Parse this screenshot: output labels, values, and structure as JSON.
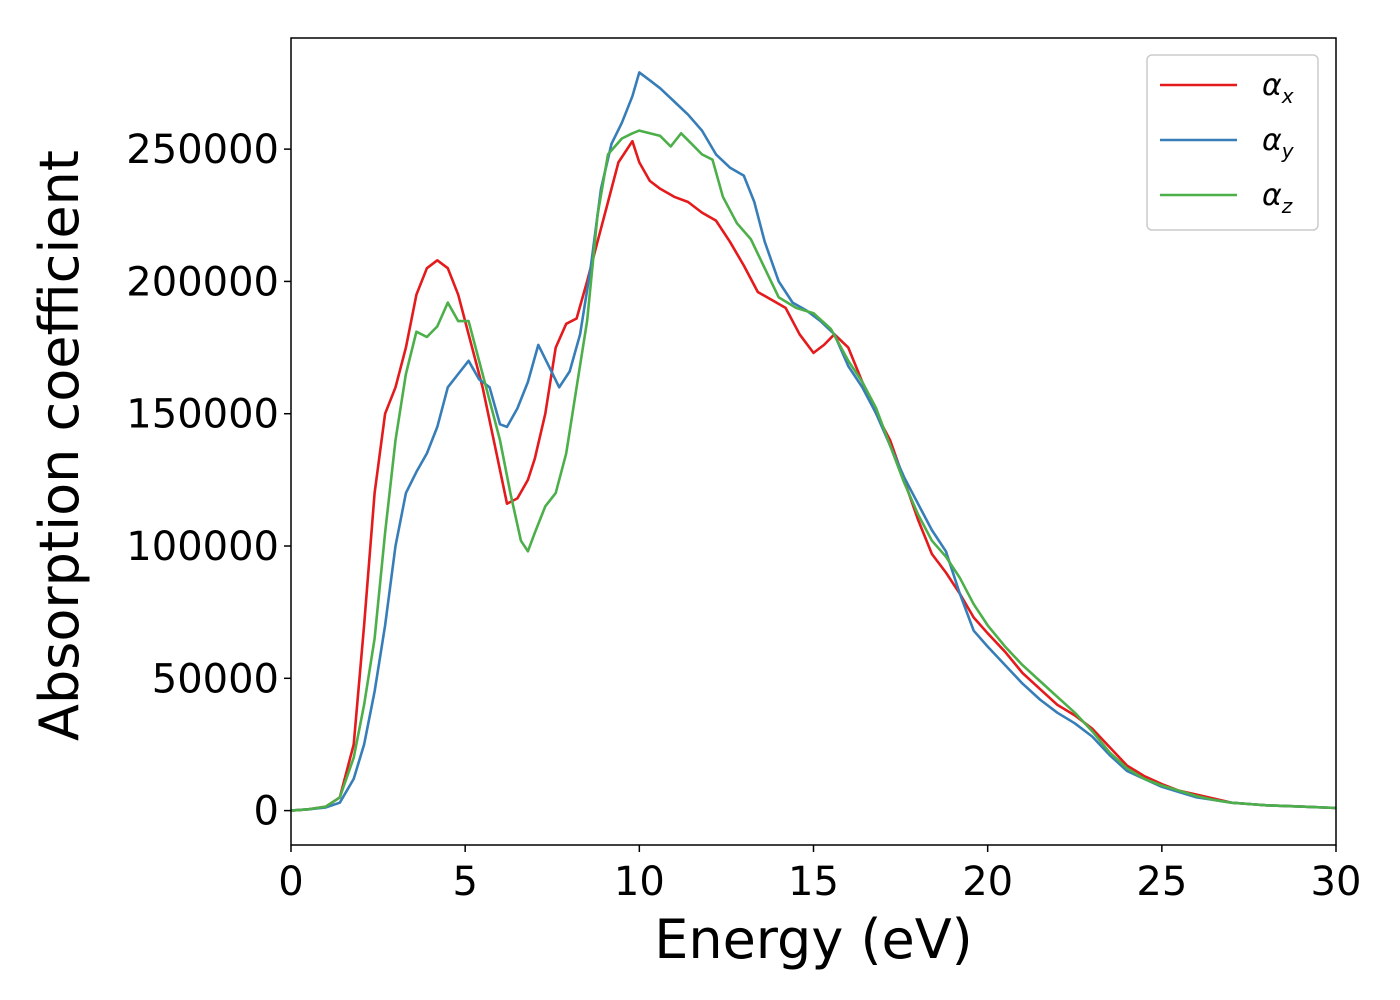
{
  "chart_data": {
    "type": "line",
    "xlabel": "Energy (eV)",
    "ylabel": "Absorption coefficient",
    "xlim": [
      0,
      30
    ],
    "ylim": [
      -13000,
      292000
    ],
    "xticks": [
      0,
      5,
      10,
      15,
      20,
      25,
      30
    ],
    "xtick_labels": [
      "0",
      "5",
      "10",
      "15",
      "20",
      "25",
      "30"
    ],
    "yticks": [
      0,
      50000,
      100000,
      150000,
      200000,
      250000
    ],
    "ytick_labels": [
      "0",
      "50000",
      "100000",
      "150000",
      "200000",
      "250000"
    ],
    "grid": false,
    "legend_position": "top-right",
    "series": [
      {
        "name": "α",
        "subscript": "x",
        "color": "#e41a1c",
        "x": [
          0,
          0.5,
          1.0,
          1.4,
          1.8,
          2.1,
          2.4,
          2.7,
          3.0,
          3.3,
          3.6,
          3.9,
          4.2,
          4.5,
          4.8,
          5.1,
          5.5,
          5.9,
          6.2,
          6.5,
          6.8,
          7.0,
          7.3,
          7.6,
          7.9,
          8.2,
          8.5,
          8.8,
          9.1,
          9.4,
          9.8,
          10.0,
          10.3,
          10.6,
          11.0,
          11.4,
          11.8,
          12.2,
          12.6,
          13.0,
          13.4,
          13.8,
          14.2,
          14.6,
          15.0,
          15.3,
          15.6,
          16.0,
          16.4,
          16.8,
          17.2,
          17.6,
          18.0,
          18.4,
          18.8,
          19.2,
          19.6,
          20.0,
          20.5,
          21.0,
          21.5,
          22.0,
          22.5,
          23.0,
          23.5,
          24.0,
          24.5,
          25.0,
          25.5,
          26.0,
          26.5,
          27.0,
          27.5,
          28.0,
          29.0,
          30.0
        ],
        "values": [
          0,
          500,
          1500,
          5000,
          25000,
          70000,
          120000,
          150000,
          160000,
          175000,
          195000,
          205000,
          208000,
          205000,
          195000,
          180000,
          160000,
          135000,
          116000,
          118000,
          125000,
          133000,
          150000,
          175000,
          184000,
          186000,
          200000,
          215000,
          230000,
          245000,
          253000,
          245000,
          238000,
          235000,
          232000,
          230000,
          226000,
          223000,
          215000,
          206000,
          196000,
          193000,
          190000,
          180000,
          173000,
          176000,
          180000,
          175000,
          162000,
          150000,
          140000,
          125000,
          110000,
          97000,
          90000,
          82000,
          73000,
          67000,
          60000,
          52000,
          46000,
          40000,
          36000,
          31000,
          24000,
          17000,
          13000,
          10000,
          7500,
          6000,
          4500,
          3000,
          2500,
          2000,
          1500,
          1000
        ]
      },
      {
        "name": "α",
        "subscript": "y",
        "color": "#377eb8",
        "x": [
          0,
          0.5,
          1.0,
          1.4,
          1.8,
          2.1,
          2.4,
          2.7,
          3.0,
          3.3,
          3.6,
          3.9,
          4.2,
          4.5,
          4.8,
          5.1,
          5.4,
          5.7,
          6.0,
          6.2,
          6.5,
          6.8,
          7.1,
          7.4,
          7.7,
          8.0,
          8.3,
          8.6,
          8.9,
          9.2,
          9.5,
          9.8,
          10.0,
          10.3,
          10.6,
          11.0,
          11.4,
          11.8,
          12.2,
          12.6,
          13.0,
          13.3,
          13.6,
          14.0,
          14.4,
          14.8,
          15.2,
          15.6,
          16.0,
          16.4,
          16.8,
          17.2,
          17.6,
          18.0,
          18.4,
          18.8,
          19.2,
          19.6,
          20.0,
          20.5,
          21.0,
          21.5,
          22.0,
          22.5,
          23.0,
          23.5,
          24.0,
          24.5,
          25.0,
          25.5,
          26.0,
          26.5,
          27.0,
          27.5,
          28.0,
          29.0,
          30.0
        ],
        "values": [
          0,
          500,
          1200,
          3000,
          12000,
          25000,
          45000,
          70000,
          100000,
          120000,
          128000,
          135000,
          145000,
          160000,
          165000,
          170000,
          163000,
          160000,
          146000,
          145000,
          152000,
          162000,
          176000,
          168000,
          160000,
          166000,
          180000,
          205000,
          235000,
          252000,
          260000,
          270000,
          279000,
          276000,
          273000,
          268000,
          263000,
          257000,
          248000,
          243000,
          240000,
          230000,
          215000,
          200000,
          192000,
          189000,
          185000,
          180000,
          168000,
          160000,
          150000,
          138000,
          126000,
          116000,
          106000,
          98000,
          82000,
          68000,
          62000,
          55000,
          48000,
          42000,
          37000,
          33000,
          28000,
          21000,
          15000,
          12000,
          9000,
          7000,
          5000,
          4000,
          3000,
          2500,
          2000,
          1500,
          1000
        ]
      },
      {
        "name": "α",
        "subscript": "z",
        "color": "#4daf4a",
        "x": [
          0,
          0.5,
          1.0,
          1.4,
          1.8,
          2.1,
          2.4,
          2.7,
          3.0,
          3.3,
          3.6,
          3.9,
          4.2,
          4.5,
          4.8,
          5.1,
          5.4,
          5.7,
          6.0,
          6.3,
          6.6,
          6.8,
          7.0,
          7.3,
          7.6,
          7.9,
          8.2,
          8.5,
          8.8,
          9.1,
          9.5,
          9.8,
          10.0,
          10.3,
          10.6,
          10.9,
          11.2,
          11.5,
          11.8,
          12.1,
          12.4,
          12.8,
          13.2,
          13.6,
          14.0,
          14.5,
          15.0,
          15.5,
          16.0,
          16.4,
          16.8,
          17.2,
          17.6,
          18.0,
          18.4,
          18.8,
          19.2,
          19.6,
          20.0,
          20.5,
          21.0,
          21.5,
          22.0,
          22.5,
          23.0,
          23.5,
          24.0,
          24.5,
          25.0,
          25.5,
          26.0,
          26.5,
          27.0,
          27.5,
          28.0,
          29.0,
          30.0
        ],
        "values": [
          0,
          500,
          1500,
          5000,
          20000,
          40000,
          65000,
          105000,
          140000,
          165000,
          181000,
          179000,
          183000,
          192000,
          185000,
          185000,
          170000,
          155000,
          140000,
          120000,
          102000,
          98000,
          105000,
          115000,
          120000,
          135000,
          160000,
          185000,
          225000,
          248000,
          254000,
          256000,
          257000,
          256000,
          255000,
          251000,
          256000,
          252000,
          248000,
          246000,
          232000,
          222000,
          216000,
          205000,
          194000,
          190000,
          188000,
          182000,
          170000,
          162000,
          152000,
          138000,
          124000,
          112000,
          102000,
          96000,
          88000,
          78000,
          70000,
          62000,
          55000,
          49000,
          43000,
          37000,
          30000,
          22000,
          16000,
          12000,
          9500,
          7500,
          5500,
          4000,
          3000,
          2500,
          2000,
          1500,
          1000
        ]
      }
    ]
  }
}
